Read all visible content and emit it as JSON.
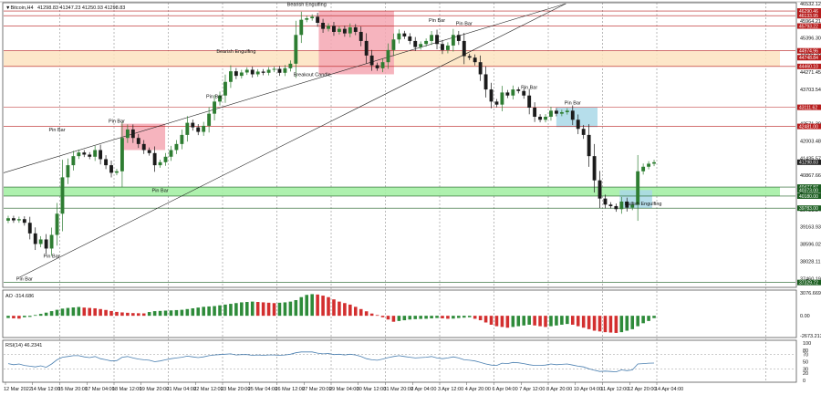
{
  "header": {
    "symbol": "▼Bitcoin,H4",
    "ohlc": "41298.83 41347.23 41250.93 41298.83"
  },
  "panels": {
    "ao_label": "AO -314.686",
    "rsi_label": "RSI(14) 46.2341"
  },
  "colors": {
    "bull": "#2e7d32",
    "bear": "#1b1b1b",
    "resistance": "#b71c1c",
    "support": "#1b5e20",
    "zone_red": "#f5a7b3",
    "zone_orange": "#fde3bf",
    "zone_green": "#a5f0a5",
    "zone_blue": "#a9d8e8",
    "ao_up": "#2e8b3a",
    "ao_down": "#d32f2f",
    "rsi_line": "#4a7fb0"
  },
  "chart_data": [
    {
      "type": "candlestick",
      "ylim": [
        37199.05,
        46532.12
      ],
      "x_labels": [
        "12 Mar 2022",
        "14 Mar 12:00",
        "15 Mar 20:00",
        "17 Mar 04:00",
        "18 Mar 12:00",
        "19 Mar 20:00",
        "21 Mar 04:00",
        "22 Mar 12:00",
        "23 Mar 20:00",
        "25 Mar 04:00",
        "26 Mar 12:00",
        "27 Mar 20:00",
        "29 Mar 04:00",
        "30 Mar 12:00",
        "31 Mar 20:00",
        "2 Apr 04:00",
        "3 Apr 12:00",
        "4 Apr 20:00",
        "6 Apr 04:00",
        "7 Apr 12:00",
        "8 Apr 20:00",
        "10 Apr 04:00",
        "11 Apr 12:00",
        "12 Apr 20:00",
        "14 Apr 04:00"
      ],
      "y_ticks": [
        46532.12,
        45964.21,
        45396.3,
        44828.39,
        44271.45,
        43703.54,
        43139.3,
        42571.39,
        42003.48,
        41435.57,
        40867.66,
        40299.75,
        39731.84,
        39163.93,
        38596.02,
        38028.11,
        37460.19
      ],
      "price_tags": [
        {
          "value": 46290.46,
          "color": "#b71c1c",
          "text": "46290.46"
        },
        {
          "value": 46133.95,
          "color": "#b71c1c",
          "text": "46133.95"
        },
        {
          "value": 45793.22,
          "color": "#b71c1c",
          "text": "45793.22"
        },
        {
          "value": 44974.96,
          "color": "#b71c1c",
          "text": "44974.96"
        },
        {
          "value": 44748.84,
          "color": "#b71c1c",
          "text": "44748.84"
        },
        {
          "value": 44460.1,
          "color": "#b71c1c",
          "text": "44460.10"
        },
        {
          "value": 43111.62,
          "color": "#b71c1c",
          "text": "43111.62"
        },
        {
          "value": 42481.0,
          "color": "#b71c1c",
          "text": "42481.00"
        },
        {
          "value": 41298.83,
          "color": "#222222",
          "text": "41298.83"
        },
        {
          "value": 40477.87,
          "color": "#1b5e20",
          "text": "40477.87"
        },
        {
          "value": 40373.0,
          "color": "#1b5e20",
          "text": "40373.00"
        },
        {
          "value": 40180.0,
          "color": "#1b5e20",
          "text": "40180.00"
        },
        {
          "value": 39783.0,
          "color": "#1b5e20",
          "text": "39783.00"
        },
        {
          "value": 37329.72,
          "color": "#1b5e20",
          "text": "37329.72"
        }
      ],
      "levels": [
        {
          "value": 46290.46,
          "kind": "resistance"
        },
        {
          "value": 46133.95,
          "kind": "resistance"
        },
        {
          "value": 45793.22,
          "kind": "resistance"
        },
        {
          "value": 44974.96,
          "kind": "resistance"
        },
        {
          "value": 44460.1,
          "kind": "resistance"
        },
        {
          "value": 43111.62,
          "kind": "resistance"
        },
        {
          "value": 42481.0,
          "kind": "resistance"
        },
        {
          "value": 40477.87,
          "kind": "support"
        },
        {
          "value": 40180.0,
          "kind": "support"
        },
        {
          "value": 39783.0,
          "kind": "support"
        },
        {
          "value": 37329.72,
          "kind": "support"
        }
      ],
      "zones": [
        {
          "kind": "orange",
          "x_from": 0,
          "x_to": 1.0,
          "y_from": 44974.96,
          "y_to": 44460.1
        },
        {
          "kind": "green",
          "x_from": 0,
          "x_to": 1.0,
          "y_from": 40477.87,
          "y_to": 40180.0
        },
        {
          "kind": "red",
          "x_from": 0.398,
          "x_to": 0.493,
          "y_from": 46290.46,
          "y_to": 44200
        },
        {
          "kind": "red",
          "x_from": 0.148,
          "x_to": 0.204,
          "y_from": 42570,
          "y_to": 41700
        },
        {
          "kind": "blue",
          "x_from": 0.698,
          "x_to": 0.75,
          "y_from": 43111.62,
          "y_to": 42460
        },
        {
          "kind": "blue",
          "x_from": 0.778,
          "x_to": 0.819,
          "y_from": 40380,
          "y_to": 39780
        }
      ],
      "channel": [
        {
          "x1": 0.0,
          "y1": 40950,
          "x2": 0.71,
          "y2": 46532.12
        },
        {
          "x1": 0.02,
          "y1": 37500,
          "x2": 0.71,
          "y2": 46532.12
        }
      ],
      "annotations": [
        {
          "text": "Bearish Engulfing",
          "candle": 55,
          "price": 46450
        },
        {
          "text": "Pin Bar",
          "candle": 79,
          "price": 45930
        },
        {
          "text": "Pin Bar",
          "candle": 84,
          "price": 45830
        },
        {
          "text": "Bearish Engulfing",
          "candle": 42,
          "price": 44900
        },
        {
          "text": "Breakout Candle",
          "candle": 56,
          "price": 44140
        },
        {
          "text": "Pin Bar",
          "candle": 38,
          "price": 43420
        },
        {
          "text": "Pin Bar",
          "candle": 96,
          "price": 43720
        },
        {
          "text": "Pin Bar",
          "candle": 104,
          "price": 43210
        },
        {
          "text": "Pin Bar",
          "candle": 9,
          "price": 42320
        },
        {
          "text": "Pin Bar",
          "candle": 20,
          "price": 42610
        },
        {
          "text": "Pin Bar",
          "candle": 28,
          "price": 40320
        },
        {
          "text": "Pin Bar",
          "candle": 8,
          "price": 38150
        },
        {
          "text": "Pin Bar",
          "candle": 3,
          "price": 37400
        },
        {
          "text": "Bullish Engulfing",
          "candle": 117,
          "price": 39880
        }
      ],
      "closes": [
        39450,
        39380,
        39420,
        39300,
        38950,
        38600,
        38750,
        38450,
        38900,
        39600,
        40800,
        41200,
        41500,
        41620,
        41550,
        41480,
        41700,
        41400,
        41200,
        40950,
        41000,
        42100,
        42380,
        42100,
        41900,
        41700,
        41600,
        41200,
        41300,
        41480,
        41700,
        41900,
        42200,
        42600,
        42450,
        42300,
        42500,
        42900,
        43300,
        43500,
        43950,
        44300,
        44150,
        44260,
        44350,
        44200,
        44290,
        44250,
        44350,
        44380,
        44250,
        44400,
        44550,
        45500,
        46000,
        46050,
        46100,
        45900,
        45700,
        45800,
        45600,
        45700,
        45550,
        45750,
        45600,
        45300,
        44820,
        44500,
        44400,
        44600,
        45000,
        45350,
        45550,
        45450,
        45300,
        45100,
        45200,
        45300,
        45500,
        45200,
        45000,
        45150,
        45500,
        45300,
        44800,
        44750,
        44600,
        44200,
        43700,
        43300,
        43200,
        43600,
        43500,
        43700,
        43650,
        43500,
        43100,
        42800,
        42700,
        42800,
        43000,
        42900,
        42950,
        43000,
        42700,
        42400,
        42200,
        41500,
        40700,
        40100,
        39900,
        39850,
        39750,
        40000,
        39800,
        39900,
        41000,
        41150,
        41250,
        41298.83
      ],
      "note": "candles are read approximately from the picture"
    },
    {
      "type": "bar",
      "title": "AO -314.686",
      "ylim": [
        -2673.213,
        3076.669
      ],
      "y_ticks": [
        3076.669,
        0.0,
        -2673.213
      ],
      "values": [
        -300,
        -350,
        -380,
        -200,
        -150,
        100,
        250,
        420,
        620,
        800,
        960,
        1050,
        1120,
        1180,
        1100,
        1050,
        1000,
        900,
        780,
        640,
        520,
        450,
        400,
        360,
        340,
        320,
        500,
        620,
        650,
        690,
        720,
        760,
        800,
        900,
        1000,
        1100,
        1200,
        1250,
        1300,
        1400,
        1500,
        1600,
        1700,
        1800,
        1850,
        1900,
        1850,
        1800,
        1750,
        1700,
        1750,
        1800,
        1900,
        2100,
        2500,
        2800,
        2900,
        2850,
        2700,
        2500,
        2200,
        1900,
        1700,
        1500,
        1200,
        900,
        600,
        300,
        100,
        -200,
        -500,
        -800,
        -700,
        -600,
        -500,
        -450,
        -420,
        -400,
        -350,
        -300,
        -350,
        -400,
        -380,
        -300,
        -250,
        -200,
        -400,
        -600,
        -900,
        -1200,
        -1400,
        -1500,
        -1600,
        -1500,
        -1400,
        -1300,
        -1200,
        -1300,
        -1400,
        -1500,
        -1400,
        -1300,
        -1200,
        -1100,
        -1200,
        -1400,
        -1600,
        -1800,
        -2000,
        -2100,
        -2200,
        -2250,
        -2300,
        -2200,
        -2000,
        -1800,
        -1400,
        -1000,
        -700,
        -314.686
      ]
    },
    {
      "type": "line",
      "title": "RSI(14) 46.2341",
      "ylim": [
        0,
        100
      ],
      "y_ticks": [
        100,
        80,
        70,
        50,
        30,
        20,
        0
      ],
      "values": [
        45,
        42,
        44,
        40,
        38,
        36,
        39,
        35,
        44,
        55,
        62,
        64,
        66,
        66,
        63,
        61,
        64,
        58,
        55,
        52,
        53,
        62,
        64,
        60,
        57,
        55,
        54,
        50,
        52,
        55,
        58,
        60,
        62,
        65,
        63,
        61,
        63,
        66,
        68,
        69,
        70,
        71,
        68,
        69,
        69,
        67,
        68,
        67,
        68,
        68,
        67,
        68,
        70,
        74,
        76,
        76,
        76,
        73,
        71,
        72,
        69,
        70,
        68,
        70,
        68,
        64,
        58,
        55,
        54,
        57,
        61,
        64,
        66,
        64,
        62,
        60,
        61,
        62,
        64,
        60,
        58,
        60,
        63,
        60,
        55,
        54,
        52,
        48,
        44,
        41,
        40,
        46,
        45,
        48,
        47,
        45,
        42,
        40,
        40,
        41,
        44,
        42,
        43,
        44,
        41,
        38,
        36,
        31,
        27,
        24,
        25,
        24,
        23,
        28,
        26,
        28,
        44,
        45,
        46,
        46.2341
      ]
    }
  ]
}
